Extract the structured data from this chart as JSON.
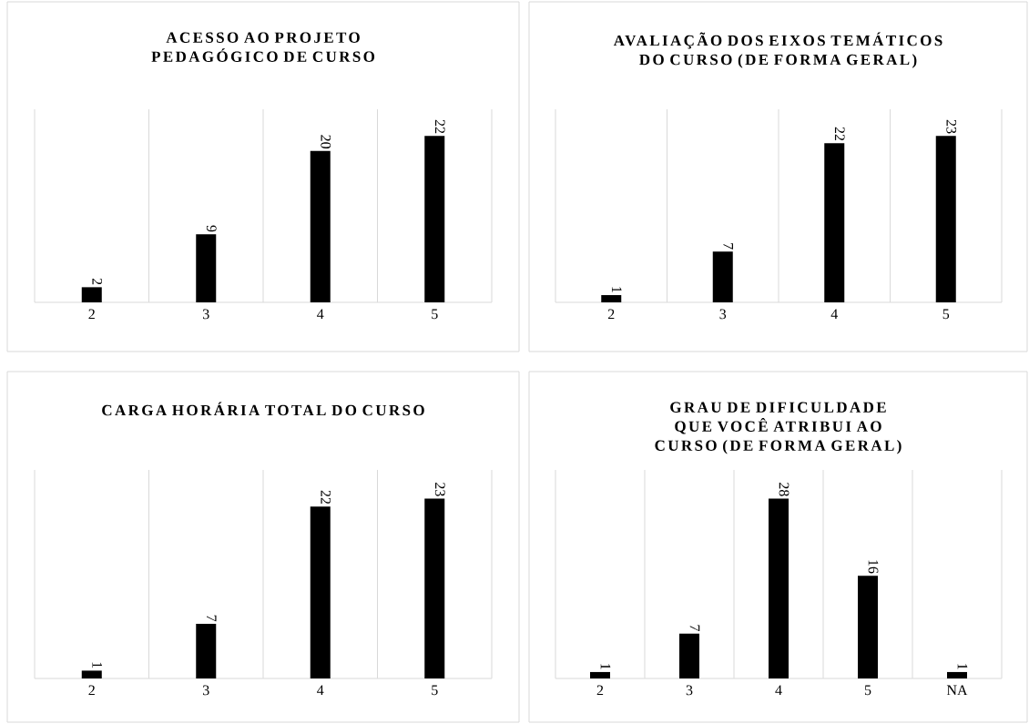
{
  "chart_data": [
    {
      "type": "bar",
      "title": "ACESSO AO PROJETO PEDAGÓGICO DE CURSO",
      "categories": [
        "2",
        "3",
        "4",
        "5"
      ],
      "values": [
        2,
        9,
        20,
        22
      ],
      "color": "#000000",
      "data_labels": true,
      "grid": "x"
    },
    {
      "type": "bar",
      "title": "AVALIAÇÃO DOS EIXOS TEMÁTICOS DO CURSO (DE FORMA GERAL)",
      "categories": [
        "2",
        "3",
        "4",
        "5"
      ],
      "values": [
        1,
        7,
        22,
        23
      ],
      "color": "#000000",
      "data_labels": true,
      "grid": "x"
    },
    {
      "type": "bar",
      "title": "CARGA HORÁRIA TOTAL DO CURSO",
      "categories": [
        "2",
        "3",
        "4",
        "5"
      ],
      "values": [
        1,
        7,
        22,
        23
      ],
      "color": "#000000",
      "data_labels": true,
      "grid": "x"
    },
    {
      "type": "bar",
      "title": "GRAU DE DIFICULDADE QUE VOCÊ ATRIBUI AO CURSO (DE FORMA GERAL)",
      "categories": [
        "2",
        "3",
        "4",
        "5",
        "NA"
      ],
      "values": [
        1,
        7,
        28,
        16,
        1
      ],
      "color": "#000000",
      "data_labels": true,
      "grid": "x"
    }
  ]
}
